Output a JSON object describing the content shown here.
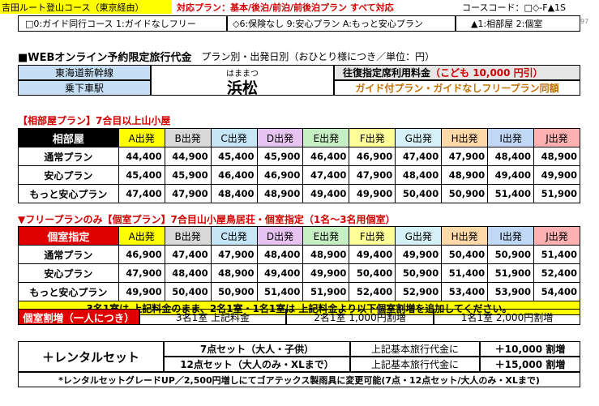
{
  "header": {
    "course": "吉田ルート登山コース（東京経由）",
    "plans": "対応プラン：基本/後泊/前泊/前後泊プラン すべて対応",
    "code": "コースコード：□◇-F▲1S",
    "opt1": "□0:ガイド同行コース 1:ガイドなしフリー",
    "opt2": "◇6:保険なし 9:安心プラン A:もっと安心プラン",
    "opt3": "▲1:相部屋 2:個室",
    "page_no": "97"
  },
  "title": {
    "main": "■WEBオンライン予約限定旅行代金",
    "sub": "プラン別・出発日別（おひとり様につき／単位：円）"
  },
  "station": {
    "line": "東海道新幹線",
    "board": "乗下車駅",
    "reading": "はままつ",
    "name": "浜松",
    "fare_label": "往復指定席利用料金",
    "child_fare": "（こども 10,000 円引）",
    "note": "ガイド付プラン・ガイドなしフリープラン同額"
  },
  "columns": [
    "A出発",
    "B出発",
    "C出発",
    "D出発",
    "E出発",
    "F出発",
    "G出発",
    "H出発",
    "I出発",
    "J出発"
  ],
  "shared": {
    "heading": "【相部屋プラン】7合目以上山小屋",
    "label": "相部屋",
    "rows": [
      {
        "plan": "通常プラン",
        "prices": [
          "44,400",
          "44,900",
          "45,400",
          "45,900",
          "46,400",
          "46,900",
          "47,400",
          "47,900",
          "48,400",
          "48,900"
        ]
      },
      {
        "plan": "安心プラン",
        "prices": [
          "45,400",
          "45,900",
          "46,400",
          "46,900",
          "47,400",
          "47,900",
          "48,400",
          "48,900",
          "49,400",
          "49,900"
        ]
      },
      {
        "plan": "もっと安心プラン",
        "prices": [
          "47,400",
          "47,900",
          "48,400",
          "48,900",
          "49,400",
          "49,900",
          "50,400",
          "50,900",
          "51,400",
          "51,900"
        ]
      }
    ]
  },
  "private": {
    "heading": "▼フリープランのみ【個室プラン】7合目山小屋鳥居荘・個室指定（1名～3名用個室）",
    "label": "個室指定",
    "rows": [
      {
        "plan": "通常プラン",
        "prices": [
          "46,900",
          "47,400",
          "47,900",
          "48,400",
          "48,900",
          "49,400",
          "49,900",
          "50,400",
          "50,900",
          "51,400"
        ]
      },
      {
        "plan": "安心プラン",
        "prices": [
          "47,900",
          "48,400",
          "48,900",
          "49,400",
          "49,900",
          "50,400",
          "50,900",
          "51,400",
          "51,900",
          "52,400"
        ]
      },
      {
        "plan": "もっと安心プラン",
        "prices": [
          "49,900",
          "50,400",
          "50,900",
          "51,400",
          "51,900",
          "52,400",
          "52,900",
          "53,400",
          "53,900",
          "54,400"
        ]
      }
    ],
    "notice": "3名1室は 上記料金のまま、2名1室・1名1室は 上記料金より以下個室割増を追加してください。",
    "surcharge_label": "個室割増（一人につき）",
    "surcharges": [
      "3名1室 上記料金",
      "2名1室 1,000円割増",
      "1名1室 2,000円割増"
    ]
  },
  "rental": {
    "label": "＋レンタルセット",
    "rows": [
      {
        "set": "7点セット（大人・子供）",
        "desc": "上記基本旅行代金に",
        "amount": "＋10,000 割増"
      },
      {
        "set": "12点セット（大人のみ・XLまで）",
        "desc": "上記基本旅行代金に",
        "amount": "＋15,000 割増"
      }
    ],
    "note": "*レンタルセットグレードUP／2,500円増しにてゴアテックス製雨具に変更可能(7点・12点セット/大人のみ・XLまで)"
  },
  "colors": {
    "accent_red": "#d00000",
    "header_yellow": "#ffff00",
    "station_blue": "#c6dff5",
    "fare_gray": "#e6e6e6"
  }
}
